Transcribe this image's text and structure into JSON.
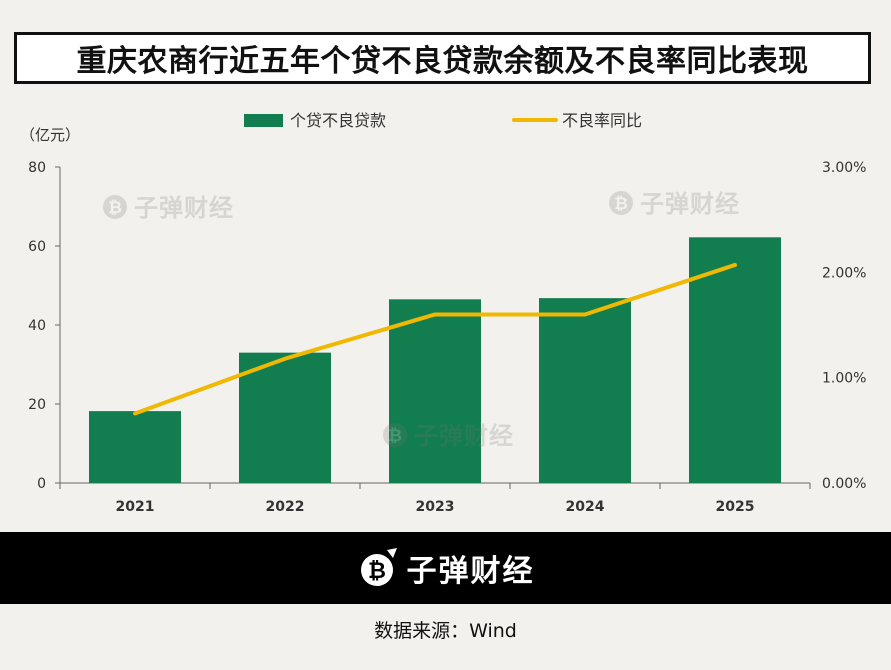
{
  "title": "重庆农商行近五年个贷不良贷款余额及不良率同比表现",
  "brand": "子弹财经",
  "source": "数据来源：Wind",
  "colors": {
    "bar": "#127d4f",
    "line": "#f0b800",
    "axis": "#666666",
    "text": "#333333"
  },
  "chart_data": {
    "type": "bar",
    "categories": [
      "2021",
      "2022",
      "2023",
      "2024",
      "2025"
    ],
    "series": [
      {
        "name": "个贷不良贷款",
        "type": "bar",
        "axis": "left",
        "values": [
          18.2,
          33.0,
          46.5,
          46.8,
          62.2
        ]
      },
      {
        "name": "不良率同比",
        "type": "line",
        "axis": "right",
        "values": [
          0.66,
          1.18,
          1.6,
          1.6,
          2.07
        ]
      }
    ],
    "yunit": "（亿元）",
    "ylim": [
      0,
      80
    ],
    "yticks": [
      "0",
      "20",
      "40",
      "60",
      "80"
    ],
    "y2lim": [
      0,
      3
    ],
    "y2ticks": [
      "0.00%",
      "1.00%",
      "2.00%",
      "3.00%"
    ],
    "grid": false,
    "legend_position": "top-center"
  }
}
